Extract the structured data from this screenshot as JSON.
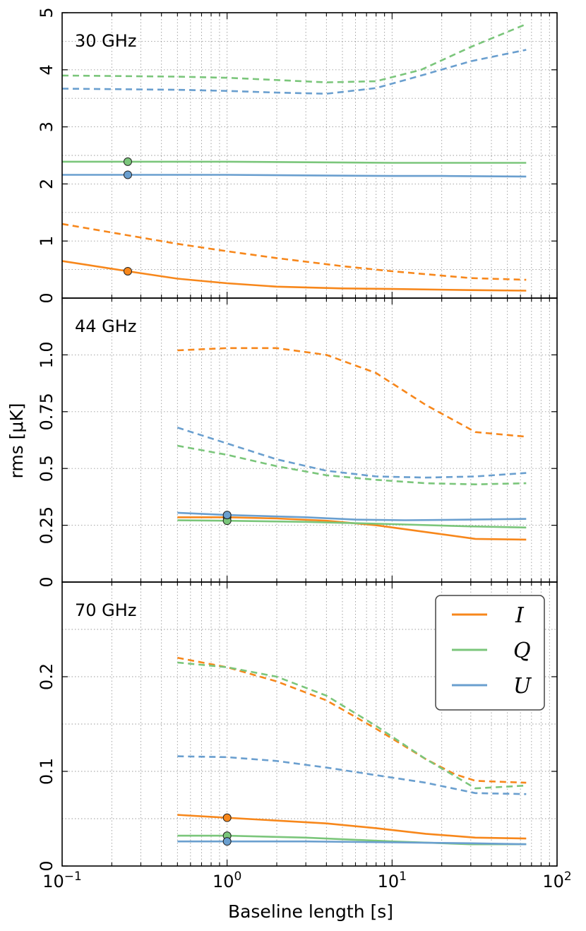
{
  "chart_data": {
    "type": "line",
    "xscale": "log",
    "xlim": [
      0.1,
      100
    ],
    "xlabel": "Baseline length [s]",
    "ylabel": "rms [μK]",
    "x_tick_labels": [
      {
        "value": 0.1,
        "base": "10",
        "exp": "−1"
      },
      {
        "value": 1,
        "base": "10",
        "exp": "0"
      },
      {
        "value": 10,
        "base": "10",
        "exp": "1"
      },
      {
        "value": 100,
        "base": "10",
        "exp": "2"
      }
    ],
    "colors": {
      "I": "#f7871b",
      "Q": "#7bc67b",
      "U": "#6a9fcf"
    },
    "legend": {
      "location": "upper right of bottom panel",
      "entries": [
        {
          "key": "I",
          "label": "I"
        },
        {
          "key": "Q",
          "label": "Q"
        },
        {
          "key": "U",
          "label": "U"
        }
      ]
    },
    "panels": [
      {
        "label": "30 GHz",
        "ylim": [
          0,
          5
        ],
        "y_tick_labels": [
          {
            "value": 0,
            "label": "0"
          },
          {
            "value": 1,
            "label": "1"
          },
          {
            "value": 2,
            "label": "2"
          },
          {
            "value": 3,
            "label": "3"
          },
          {
            "value": 4,
            "label": "4"
          },
          {
            "value": 5,
            "label": "5"
          }
        ],
        "y_minor": [
          0.5,
          1.5,
          2.5,
          3.5,
          4.5
        ],
        "series": [
          {
            "name": "I",
            "style": "solid",
            "x": [
              0.1,
              0.25,
              0.5,
              1,
              2,
              5,
              10,
              30,
              65
            ],
            "y": [
              0.65,
              0.47,
              0.34,
              0.26,
              0.2,
              0.17,
              0.16,
              0.14,
              0.13
            ]
          },
          {
            "name": "I",
            "style": "dashed",
            "x": [
              0.1,
              0.25,
              0.5,
              1,
              2,
              5,
              10,
              30,
              65
            ],
            "y": [
              1.3,
              1.1,
              0.95,
              0.82,
              0.7,
              0.56,
              0.47,
              0.35,
              0.32
            ]
          },
          {
            "name": "Q",
            "style": "solid",
            "x": [
              0.1,
              0.5,
              1,
              3,
              10,
              30,
              65
            ],
            "y": [
              2.39,
              2.39,
              2.39,
              2.38,
              2.37,
              2.37,
              2.37
            ]
          },
          {
            "name": "Q",
            "style": "dashed",
            "x": [
              0.1,
              0.5,
              1,
              2,
              4,
              8,
              15,
              30,
              65
            ],
            "y": [
              3.9,
              3.88,
              3.86,
              3.82,
              3.78,
              3.8,
              4.0,
              4.4,
              4.8
            ]
          },
          {
            "name": "U",
            "style": "solid",
            "x": [
              0.1,
              0.5,
              1,
              3,
              10,
              20,
              65
            ],
            "y": [
              2.16,
              2.16,
              2.16,
              2.15,
              2.14,
              2.14,
              2.13
            ]
          },
          {
            "name": "U",
            "style": "dashed",
            "x": [
              0.1,
              0.5,
              1,
              2,
              4,
              8,
              15,
              30,
              65
            ],
            "y": [
              3.67,
              3.65,
              3.63,
              3.6,
              3.58,
              3.68,
              3.9,
              4.15,
              4.35
            ]
          }
        ],
        "markers": [
          {
            "name": "Q",
            "x": 0.25,
            "y": 2.39
          },
          {
            "name": "U",
            "x": 0.25,
            "y": 2.16
          },
          {
            "name": "I",
            "x": 0.25,
            "y": 0.47
          }
        ]
      },
      {
        "label": "44 GHz",
        "ylim": [
          0,
          1.25
        ],
        "y_tick_labels": [
          {
            "value": 0,
            "label": "0"
          },
          {
            "value": 0.25,
            "label": "0.25"
          },
          {
            "value": 0.5,
            "label": "0.5"
          },
          {
            "value": 0.75,
            "label": "0.75"
          },
          {
            "value": 1.0,
            "label": "1.0"
          }
        ],
        "y_minor": [],
        "series": [
          {
            "name": "I",
            "style": "solid",
            "x": [
              0.5,
              1,
              2,
              4,
              8,
              16,
              32,
              65
            ],
            "y": [
              0.285,
              0.285,
              0.28,
              0.27,
              0.25,
              0.22,
              0.19,
              0.187
            ]
          },
          {
            "name": "I",
            "style": "dashed",
            "x": [
              0.5,
              1,
              2,
              4,
              8,
              16,
              32,
              65
            ],
            "y": [
              1.02,
              1.03,
              1.03,
              1.0,
              0.92,
              0.78,
              0.66,
              0.64
            ]
          },
          {
            "name": "Q",
            "style": "solid",
            "x": [
              0.5,
              1,
              3,
              10,
              30,
              65
            ],
            "y": [
              0.272,
              0.27,
              0.265,
              0.255,
              0.245,
              0.24
            ]
          },
          {
            "name": "Q",
            "style": "dashed",
            "x": [
              0.5,
              1,
              2,
              4,
              8,
              16,
              32,
              65
            ],
            "y": [
              0.6,
              0.56,
              0.51,
              0.47,
              0.45,
              0.435,
              0.43,
              0.435
            ]
          },
          {
            "name": "U",
            "style": "solid",
            "x": [
              0.5,
              1,
              3,
              6,
              12,
              30,
              65
            ],
            "y": [
              0.305,
              0.295,
              0.285,
              0.275,
              0.272,
              0.275,
              0.278
            ]
          },
          {
            "name": "U",
            "style": "dashed",
            "x": [
              0.5,
              1,
              2,
              4,
              8,
              16,
              32,
              65
            ],
            "y": [
              0.68,
              0.61,
              0.54,
              0.49,
              0.465,
              0.46,
              0.465,
              0.48
            ]
          }
        ],
        "markers": [
          {
            "name": "I",
            "x": 1,
            "y": 0.285
          },
          {
            "name": "Q",
            "x": 1,
            "y": 0.27
          },
          {
            "name": "U",
            "x": 1,
            "y": 0.295
          }
        ]
      },
      {
        "label": "70 GHz",
        "ylim": [
          0,
          0.3
        ],
        "y_tick_labels": [
          {
            "value": 0,
            "label": "0"
          },
          {
            "value": 0.1,
            "label": "0.1"
          },
          {
            "value": 0.2,
            "label": "0.2"
          }
        ],
        "y_minor": [
          0.05,
          0.15,
          0.25
        ],
        "series": [
          {
            "name": "I",
            "style": "solid",
            "x": [
              0.5,
              1,
              2,
              4,
              8,
              16,
              32,
              65
            ],
            "y": [
              0.054,
              0.051,
              0.048,
              0.045,
              0.04,
              0.034,
              0.03,
              0.029
            ]
          },
          {
            "name": "I",
            "style": "dashed",
            "x": [
              0.5,
              1,
              2,
              4,
              8,
              16,
              24,
              32,
              65
            ],
            "y": [
              0.22,
              0.21,
              0.195,
              0.175,
              0.145,
              0.113,
              0.097,
              0.09,
              0.088
            ]
          },
          {
            "name": "Q",
            "style": "solid",
            "x": [
              0.5,
              1,
              3,
              10,
              30,
              65
            ],
            "y": [
              0.032,
              0.032,
              0.03,
              0.026,
              0.023,
              0.023
            ]
          },
          {
            "name": "Q",
            "style": "dashed",
            "x": [
              0.5,
              1,
              2,
              4,
              8,
              16,
              24,
              32,
              65
            ],
            "y": [
              0.215,
              0.21,
              0.2,
              0.18,
              0.148,
              0.113,
              0.095,
              0.082,
              0.085
            ]
          },
          {
            "name": "U",
            "style": "solid",
            "x": [
              0.5,
              1,
              3,
              10,
              30,
              65
            ],
            "y": [
              0.026,
              0.026,
              0.026,
              0.025,
              0.024,
              0.023
            ]
          },
          {
            "name": "U",
            "style": "dashed",
            "x": [
              0.5,
              1,
              2,
              4,
              8,
              16,
              32,
              65
            ],
            "y": [
              0.116,
              0.115,
              0.111,
              0.104,
              0.096,
              0.088,
              0.077,
              0.076
            ]
          }
        ],
        "markers": [
          {
            "name": "I",
            "x": 1,
            "y": 0.051
          },
          {
            "name": "Q",
            "x": 1,
            "y": 0.032
          },
          {
            "name": "U",
            "x": 1,
            "y": 0.026
          }
        ]
      }
    ]
  }
}
